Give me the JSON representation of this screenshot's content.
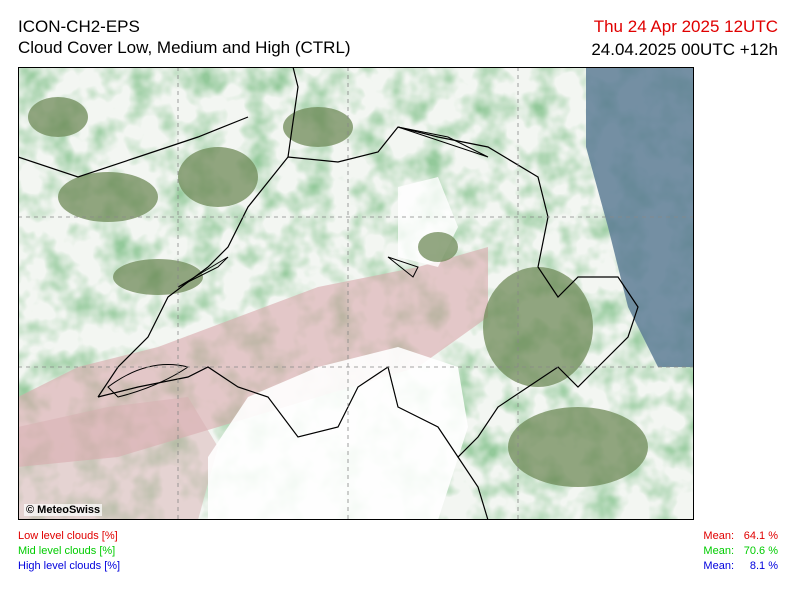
{
  "header": {
    "model": "ICON-CH2-EPS",
    "product": "Cloud Cover Low, Medium and High (CTRL)",
    "valid_time": "Thu 24 Apr 2025 12UTC",
    "run_time": "24.04.2025 00UTC +12h"
  },
  "map": {
    "copyright": "© MeteoSwiss"
  },
  "legend": [
    {
      "label": "Low level clouds [%]",
      "mean_label": "Mean:",
      "mean": "64.1 %"
    },
    {
      "label": "Mid level clouds [%]",
      "mean_label": "Mean:",
      "mean": "70.6 %"
    },
    {
      "label": "High level clouds [%]",
      "mean_label": "Mean:",
      "mean": "8.1 %"
    }
  ]
}
